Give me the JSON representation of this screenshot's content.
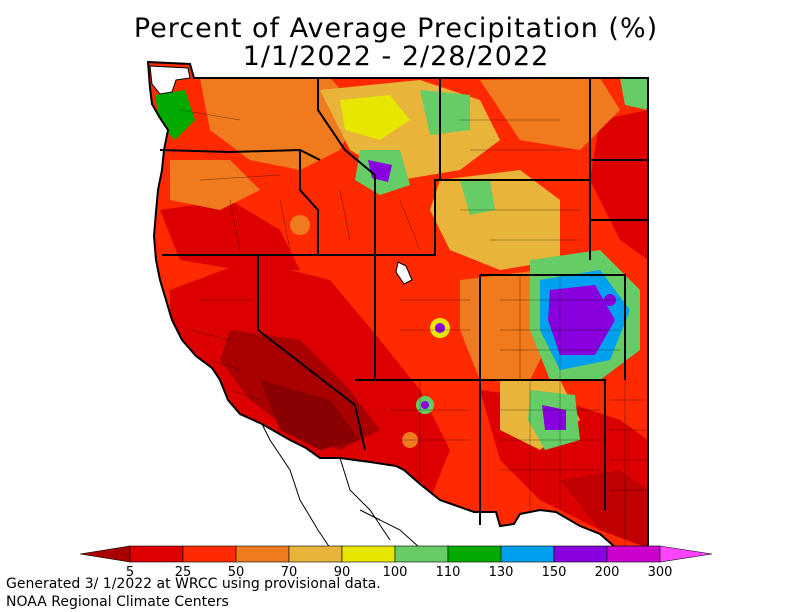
{
  "title": {
    "line1": "Percent of Average Precipitation (%)",
    "line2": "1/1/2022 - 2/28/2022"
  },
  "legend": {
    "ticks": [
      "5",
      "25",
      "50",
      "70",
      "90",
      "100",
      "110",
      "130",
      "150",
      "200",
      "300"
    ],
    "colors": [
      "#a80000",
      "#dd0000",
      "#ff2a00",
      "#f07a1e",
      "#e8b43a",
      "#e6e600",
      "#66cc66",
      "#00aa00",
      "#00a0f0",
      "#8800dd",
      "#cc00cc",
      "#ff44ff"
    ]
  },
  "footer": {
    "line1": "Generated 3/ 1/2022 at WRCC using provisional data.",
    "line2": "NOAA Regional Climate Centers"
  },
  "map_colors": {
    "water": "#ffffff",
    "border": "#000000"
  }
}
